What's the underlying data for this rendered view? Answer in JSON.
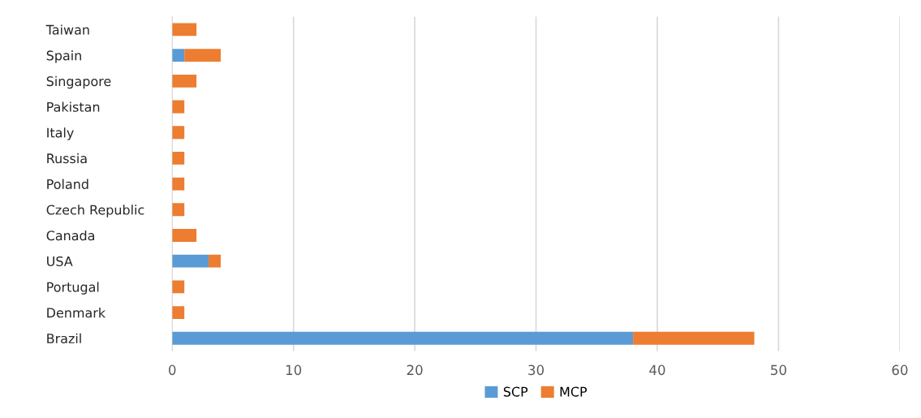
{
  "chart_data": {
    "type": "bar",
    "orientation": "horizontal",
    "stacked": true,
    "categories": [
      "Taiwan",
      "Spain",
      "Singapore",
      "Pakistan",
      "Italy",
      "Russia",
      "Poland",
      "Czech Republic",
      "Canada",
      "USA",
      "Portugal",
      "Denmark",
      "Brazil"
    ],
    "series": [
      {
        "name": "SCP",
        "color": "#5b9bd5",
        "values": [
          0,
          1,
          0,
          0,
          0,
          0,
          0,
          0,
          0,
          3,
          0,
          0,
          38
        ]
      },
      {
        "name": "MCP",
        "color": "#ed7d31",
        "values": [
          2,
          3,
          2,
          1,
          1,
          1,
          1,
          1,
          2,
          1,
          1,
          1,
          10
        ]
      }
    ],
    "xlim": [
      0,
      60
    ],
    "xticks": [
      0,
      10,
      20,
      30,
      40,
      50,
      60
    ],
    "grid": "x",
    "legend": "bottom"
  }
}
